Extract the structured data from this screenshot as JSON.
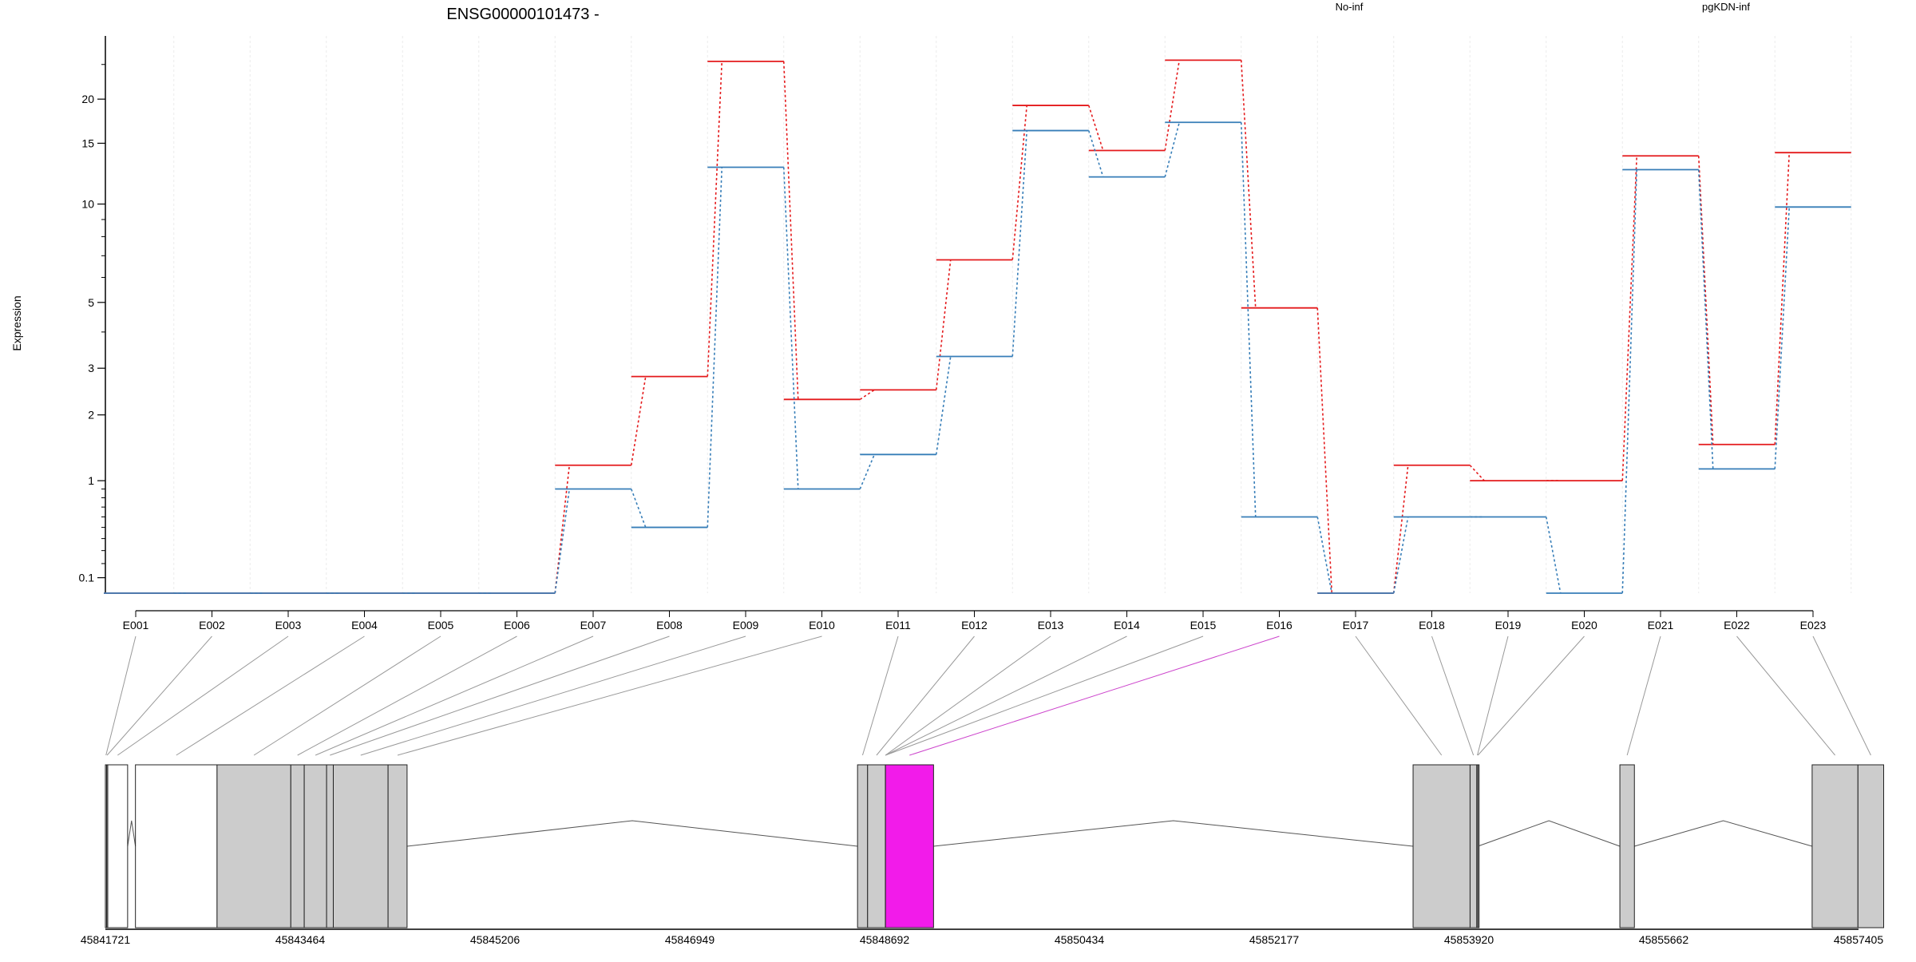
{
  "title": "ENSG00000101473 -",
  "ylabel": "Expression",
  "legend": [
    {
      "label": "No-inf",
      "color": "#e41a1c"
    },
    {
      "label": "pgKDN-inf",
      "color": "#377eb8"
    }
  ],
  "colors": {
    "exon_fill": "#cccccc",
    "highlight_fill": "#f21bea",
    "highlight_line": "#cc44cc",
    "connector": "#999999"
  },
  "chart_data": {
    "type": "line",
    "title": "ENSG00000101473 -",
    "ylabel": "Expression",
    "xlabel": "",
    "y_scale": "log1p",
    "ylim": [
      0,
      30
    ],
    "y_ticks": [
      0.1,
      1,
      2,
      3,
      5,
      10,
      15,
      20
    ],
    "grid": "vertical-minor",
    "legend_position": "top",
    "categories": [
      "E001",
      "E002",
      "E003",
      "E004",
      "E005",
      "E006",
      "E007",
      "E008",
      "E009",
      "E010",
      "E011",
      "E012",
      "E013",
      "E014",
      "E015",
      "E016",
      "E017",
      "E018",
      "E019",
      "E020",
      "E021",
      "E022",
      "E023"
    ],
    "highlight_category": "E016",
    "series": [
      {
        "name": "No-inf",
        "color": "#e41a1c",
        "values": [
          0,
          0,
          0,
          0,
          0,
          0,
          1.2,
          2.8,
          25.5,
          2.3,
          2.5,
          6.8,
          19.2,
          14.3,
          25.7,
          4.8,
          0,
          1.2,
          1.0,
          1.0,
          13.8,
          1.5,
          14.1
        ]
      },
      {
        "name": "pgKDN-inf",
        "color": "#377eb8",
        "values": [
          0,
          0,
          0,
          0,
          0,
          0,
          0.9,
          0.5,
          12.8,
          0.9,
          1.35,
          3.3,
          16.3,
          12.0,
          17.2,
          0.6,
          0,
          0.6,
          0.6,
          0,
          12.6,
          1.15,
          9.8
        ]
      }
    ]
  },
  "genomic_axis": {
    "ticks": [
      "45841721",
      "45843464",
      "45845206",
      "45846949",
      "45848692",
      "45850434",
      "45852177",
      "45853920",
      "45855662",
      "45857405"
    ],
    "range": [
      45841721,
      45857405
    ],
    "exons": [
      {
        "id": "E001",
        "start": 45841721,
        "end": 45841731,
        "fill": "none"
      },
      {
        "id": "E002",
        "start": 45841731,
        "end": 45841741,
        "fill": "none"
      },
      {
        "id": "E003",
        "start": 45841741,
        "end": 45841920,
        "fill": "none"
      },
      {
        "id": "E004",
        "start": 45841990,
        "end": 45842720,
        "fill": "none"
      },
      {
        "id": "E005",
        "start": 45842720,
        "end": 45843380,
        "fill": "exon"
      },
      {
        "id": "E006",
        "start": 45843380,
        "end": 45843500,
        "fill": "exon"
      },
      {
        "id": "E007",
        "start": 45843500,
        "end": 45843700,
        "fill": "exon"
      },
      {
        "id": "E008",
        "start": 45843700,
        "end": 45843760,
        "fill": "exon"
      },
      {
        "id": "E009",
        "start": 45843760,
        "end": 45844250,
        "fill": "exon"
      },
      {
        "id": "E010",
        "start": 45844250,
        "end": 45844420,
        "fill": "exon"
      },
      {
        "id": "E011",
        "start": 45848450,
        "end": 45848540,
        "fill": "exon"
      },
      {
        "id": "E012",
        "start": 45848540,
        "end": 45848700,
        "fill": "exon"
      },
      {
        "id": "E013",
        "start": 45848700,
        "end": 45848700,
        "fill": "exon"
      },
      {
        "id": "E014",
        "start": 45848700,
        "end": 45848700,
        "fill": "exon"
      },
      {
        "id": "E015",
        "start": 45848700,
        "end": 45848700,
        "fill": "exon"
      },
      {
        "id": "E016",
        "start": 45848700,
        "end": 45849130,
        "fill": "highlight"
      },
      {
        "id": "E017",
        "start": 45853420,
        "end": 45853930,
        "fill": "exon"
      },
      {
        "id": "E018",
        "start": 45853930,
        "end": 45853990,
        "fill": "exon"
      },
      {
        "id": "E019",
        "start": 45853990,
        "end": 45854000,
        "fill": "exon"
      },
      {
        "id": "E020",
        "start": 45854000,
        "end": 45854000,
        "fill": "exon"
      },
      {
        "id": "E021",
        "start": 45855270,
        "end": 45855400,
        "fill": "exon"
      },
      {
        "id": "E022",
        "start": 45856990,
        "end": 45857400,
        "fill": "exon"
      },
      {
        "id": "E023",
        "start": 45857400,
        "end": 45857630,
        "fill": "exon"
      }
    ]
  }
}
